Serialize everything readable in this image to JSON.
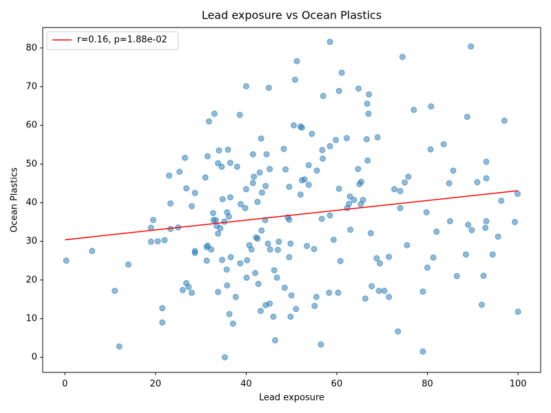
{
  "chart_data": {
    "type": "scatter",
    "title": "Lead exposure vs Ocean Plastics",
    "x_label": "Lead exposure",
    "y_label": "Ocean Plastics",
    "xlim": [
      -4.9,
      105
    ],
    "ylim": [
      -3.9,
      85.3
    ],
    "xticks": [
      0,
      20,
      40,
      60,
      80,
      100
    ],
    "yticks": [
      0,
      10,
      20,
      30,
      40,
      50,
      60,
      70,
      80
    ],
    "legend": "upper left",
    "series": [
      {
        "type": "scatter",
        "color": "#1f77b4",
        "x": [
          0.3,
          6,
          11,
          12,
          14,
          19,
          19,
          19.5,
          20.5,
          21.5,
          21.5,
          22,
          23,
          23.3,
          23.3,
          25,
          25.3,
          26,
          26.5,
          26.8,
          26.8,
          27.3,
          28,
          28,
          28.7,
          28.7,
          28.7,
          31,
          31.3,
          31.3,
          31.5,
          31.5,
          31.8,
          32.3,
          32.7,
          32.8,
          33,
          33.3,
          33.5,
          33.8,
          33.8,
          33.8,
          34,
          34.3,
          34.6,
          34.7,
          34.8,
          35.2,
          35.3,
          35.7,
          35.8,
          35.8,
          36,
          36.2,
          36.3,
          36.5,
          36.5,
          36.6,
          37.1,
          37.7,
          38,
          38.6,
          38.7,
          38.8,
          39.8,
          40,
          40,
          40.1,
          40.2,
          40.7,
          41.2,
          41.5,
          41.5,
          41.7,
          42,
          42.2,
          42.5,
          42.5,
          42.7,
          43,
          43.2,
          43.3,
          43.4,
          43.5,
          44.2,
          44.3,
          44.3,
          44.5,
          44.8,
          45,
          45.2,
          45.2,
          45.3,
          46,
          46.2,
          46.4,
          46.8,
          47,
          47.2,
          48.3,
          48.5,
          48.7,
          49.2,
          49.5,
          49.5,
          49.5,
          49.8,
          49.8,
          50,
          50.5,
          50.8,
          51,
          51.2,
          52,
          52,
          52.3,
          52.3,
          52.9,
          53.4,
          53.8,
          53.8,
          54.5,
          55,
          55.1,
          55.5,
          55.6,
          56.5,
          56.7,
          56.8,
          56.9,
          57,
          58.3,
          58.5,
          58.5,
          58.5,
          59.3,
          59.8,
          60.3,
          60.5,
          60.5,
          60.8,
          61.1,
          62.2,
          62.3,
          62.7,
          62.9,
          63,
          63.8,
          64.7,
          64.8,
          65,
          65.3,
          65.4,
          65.8,
          66.3,
          66.6,
          66.7,
          66.8,
          67,
          67.1,
          67.5,
          67.7,
          68.8,
          69,
          69.3,
          69.5,
          70.5,
          71.5,
          71.5,
          72.7,
          73.5,
          74,
          74,
          74.5,
          75,
          75.5,
          75.8,
          77,
          79,
          79,
          79.8,
          80,
          80.7,
          80.8,
          81.3,
          82,
          83.6,
          84.8,
          85,
          85.7,
          86.5,
          88.5,
          88.8,
          89,
          89.6,
          89.8,
          91,
          92,
          92.4,
          92.8,
          93,
          93,
          93,
          94.4,
          95.6,
          96.3,
          97,
          99.3,
          99.9,
          100
        ],
        "values": [
          25,
          27.5,
          17.2,
          2.8,
          24,
          33.5,
          29.9,
          35.5,
          30,
          12.7,
          9,
          30.3,
          47,
          39.8,
          33.2,
          33.6,
          48,
          17.4,
          51.6,
          19.2,
          43.7,
          18.2,
          39.1,
          16.7,
          27.5,
          27,
          42.5,
          46.5,
          28.5,
          25,
          52,
          28.9,
          61,
          27.9,
          37.3,
          35.5,
          63,
          35.5,
          34,
          16.9,
          32,
          50.2,
          53.5,
          33.4,
          49.3,
          25.2,
          40.9,
          35.1,
          0,
          22.7,
          18.6,
          37.5,
          53.7,
          36.4,
          11.2,
          41.4,
          50.3,
          25.9,
          8.7,
          15.6,
          49.3,
          62.7,
          24.3,
          39.6,
          38.6,
          43.5,
          70.1,
          20.6,
          25.1,
          29,
          27.9,
          52.5,
          45.1,
          46.7,
          21.8,
          31,
          30.7,
          40.2,
          19,
          47.8,
          12,
          56.6,
          32.8,
          42.6,
          35.5,
          44.3,
          13.5,
          52.5,
          29.4,
          69.7,
          48.7,
          13.9,
          27.9,
          10.5,
          22.5,
          4.4,
          20.6,
          27.8,
          29.9,
          53.9,
          18,
          48.6,
          36.2,
          35.6,
          25.9,
          44.1,
          10.5,
          29.4,
          16,
          60,
          71.8,
          12.5,
          76.6,
          42.1,
          59.7,
          45.8,
          59.4,
          46,
          28.8,
          49.7,
          44.6,
          57.8,
          28,
          13.3,
          15.6,
          48.3,
          3.3,
          35.8,
          53.6,
          51.4,
          67.6,
          16.7,
          81.6,
          54.6,
          36.7,
          30.4,
          56.2,
          16.7,
          43.6,
          68.9,
          24.9,
          73.6,
          56.7,
          38.6,
          39.7,
          41.6,
          33,
          40.7,
          48.7,
          69.5,
          44.8,
          39.6,
          45.4,
          40.7,
          15.2,
          56.4,
          65.6,
          50.9,
          63,
          68,
          32.1,
          18.4,
          25.6,
          56.9,
          17.2,
          24.3,
          17.2,
          15.6,
          26,
          43.5,
          6.7,
          38.6,
          43,
          77.7,
          45.2,
          29,
          46.7,
          64,
          1.5,
          17,
          37.5,
          23.2,
          53.8,
          64.9,
          25.8,
          32.5,
          55.1,
          45,
          35.2,
          48.3,
          21,
          26.6,
          62.2,
          34.3,
          80.4,
          32.9,
          45.3,
          13.6,
          21.1,
          33.5,
          35.2,
          50.6,
          46.3,
          26.6,
          31.2,
          40.5,
          61.2,
          35,
          42.3,
          11.8
        ]
      },
      {
        "type": "line",
        "name": "r=0.16, p=1.88e-02",
        "color": "#ff0000",
        "x": [
          0,
          100
        ],
        "values": [
          30.4,
          43.1
        ]
      }
    ]
  }
}
